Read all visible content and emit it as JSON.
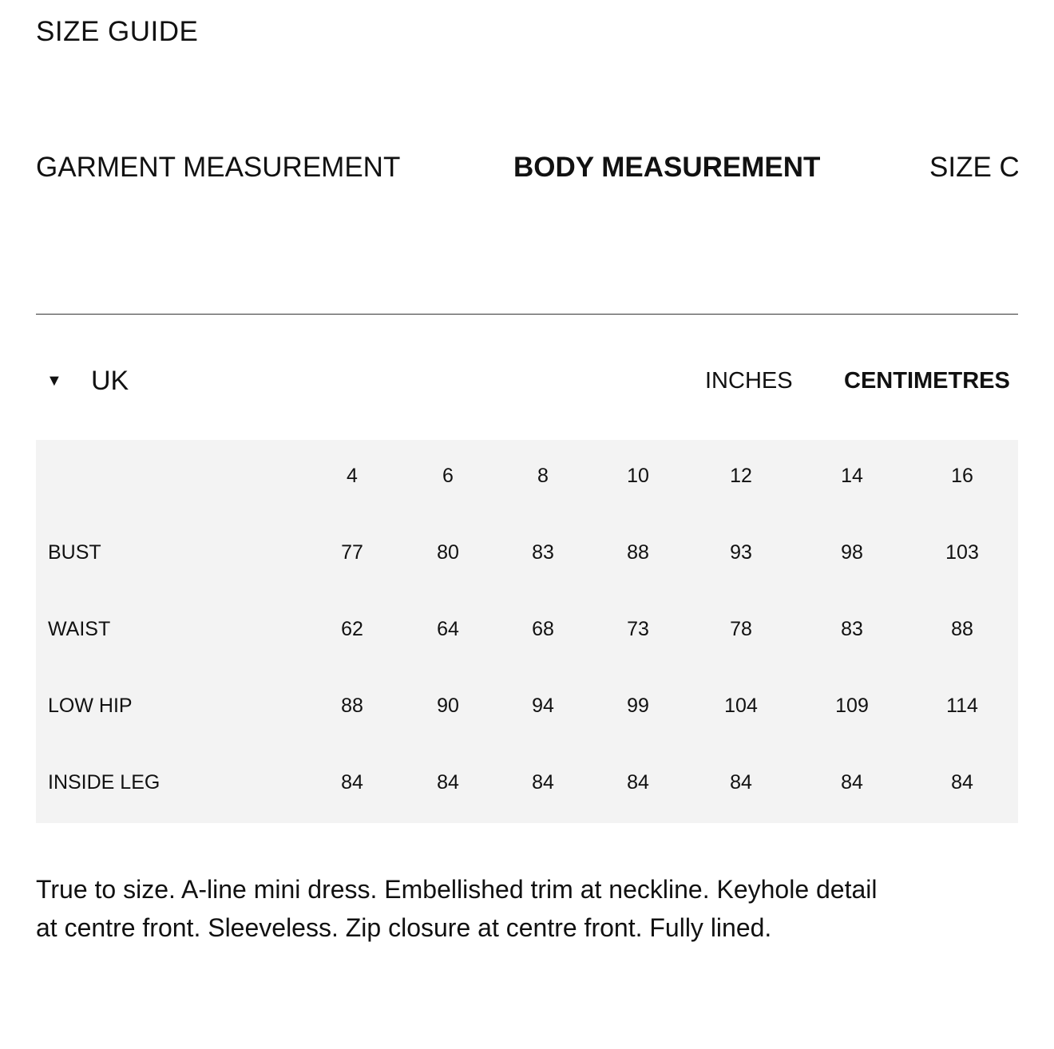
{
  "header": {
    "title": "SIZE GUIDE"
  },
  "tabs": [
    {
      "label": "GARMENT MEASUREMENT",
      "active": false
    },
    {
      "label": "BODY MEASUREMENT",
      "active": true
    },
    {
      "label": "SIZE CHART",
      "active": false
    }
  ],
  "region": {
    "label": "UK",
    "icon": "caret-down-icon"
  },
  "units": [
    {
      "label": "INCHES",
      "active": false
    },
    {
      "label": "CENTIMETRES",
      "active": true
    }
  ],
  "table": {
    "sizes": [
      "4",
      "6",
      "8",
      "10",
      "12",
      "14",
      "16"
    ],
    "rows": [
      {
        "label": "BUST",
        "values": [
          "77",
          "80",
          "83",
          "88",
          "93",
          "98",
          "103"
        ]
      },
      {
        "label": "WAIST",
        "values": [
          "62",
          "64",
          "68",
          "73",
          "78",
          "83",
          "88"
        ]
      },
      {
        "label": "LOW HIP",
        "values": [
          "88",
          "90",
          "94",
          "99",
          "104",
          "109",
          "114"
        ]
      },
      {
        "label": "INSIDE LEG",
        "values": [
          "84",
          "84",
          "84",
          "84",
          "84",
          "84",
          "84"
        ]
      }
    ]
  },
  "description": "True to size. A-line mini dress. Embellished trim at neckline. Keyhole detail at centre front. Sleeveless. Zip closure at centre front. Fully lined."
}
